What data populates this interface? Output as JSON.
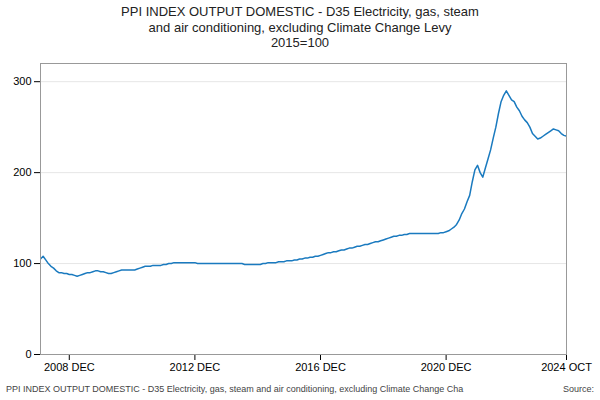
{
  "chart_data": {
    "type": "line",
    "title": "PPI INDEX OUTPUT DOMESTIC - D35 Electricity, gas, steam\nand air conditioning, excluding Climate Change Levy\n2015=100",
    "footer": "PPI INDEX OUTPUT DOMESTIC - D35 Electricity, gas, steam and air conditioning, excluding Climate Change Cha",
    "source": "Source:",
    "color": "#1a7abf",
    "grid": true,
    "ylim": [
      0,
      320
    ],
    "yticks": [
      0,
      100,
      200,
      300
    ],
    "categories": [
      null,
      null,
      null,
      null,
      null,
      null,
      null,
      null,
      null,
      null,
      null,
      "2008 DEC",
      null,
      null,
      null,
      null,
      null,
      null,
      null,
      null,
      null,
      null,
      null,
      null,
      null,
      null,
      null,
      null,
      null,
      null,
      null,
      null,
      null,
      null,
      null,
      null,
      null,
      null,
      null,
      null,
      null,
      null,
      null,
      null,
      null,
      null,
      null,
      null,
      null,
      null,
      null,
      null,
      null,
      null,
      null,
      null,
      null,
      null,
      null,
      "2012 DEC",
      null,
      null,
      null,
      null,
      null,
      null,
      null,
      null,
      null,
      null,
      null,
      null,
      null,
      null,
      null,
      null,
      null,
      null,
      null,
      null,
      null,
      null,
      null,
      null,
      null,
      null,
      null,
      null,
      null,
      null,
      null,
      null,
      null,
      null,
      null,
      null,
      null,
      null,
      null,
      null,
      null,
      null,
      null,
      null,
      null,
      null,
      null,
      "2016 DEC",
      null,
      null,
      null,
      null,
      null,
      null,
      null,
      null,
      null,
      null,
      null,
      null,
      null,
      null,
      null,
      null,
      null,
      null,
      null,
      null,
      null,
      null,
      null,
      null,
      null,
      null,
      null,
      null,
      null,
      null,
      null,
      null,
      null,
      null,
      null,
      null,
      null,
      null,
      null,
      null,
      null,
      null,
      null,
      null,
      null,
      null,
      null,
      "2020 DEC",
      null,
      null,
      null,
      null,
      null,
      null,
      null,
      null,
      null,
      null,
      null,
      null,
      null,
      null,
      null,
      null,
      null,
      null,
      null,
      null,
      null,
      null,
      null,
      null,
      null,
      null,
      null,
      null,
      null,
      null,
      null,
      null,
      null,
      null,
      null,
      null,
      null,
      null,
      null,
      null,
      null,
      null,
      null,
      null,
      null,
      "2024 OCT"
    ],
    "values": [
      105,
      108,
      104,
      100,
      97,
      95,
      92,
      90,
      90,
      89,
      89,
      88,
      88,
      87,
      86,
      87,
      88,
      89,
      90,
      90,
      91,
      92,
      92,
      91,
      91,
      90,
      89,
      89,
      90,
      91,
      92,
      93,
      93,
      93,
      93,
      93,
      93,
      94,
      95,
      96,
      97,
      97,
      97,
      98,
      98,
      98,
      98,
      99,
      99,
      100,
      100,
      101,
      101,
      101,
      101,
      101,
      101,
      101,
      101,
      101,
      100,
      100,
      100,
      100,
      100,
      100,
      100,
      100,
      100,
      100,
      100,
      100,
      100,
      100,
      100,
      100,
      100,
      100,
      99,
      99,
      99,
      99,
      99,
      99,
      99,
      100,
      100,
      101,
      101,
      101,
      101,
      102,
      102,
      102,
      103,
      103,
      103,
      104,
      104,
      105,
      105,
      106,
      106,
      107,
      107,
      108,
      108,
      109,
      110,
      111,
      112,
      112,
      113,
      113,
      114,
      115,
      115,
      116,
      117,
      117,
      118,
      119,
      119,
      120,
      121,
      121,
      122,
      123,
      124,
      124,
      125,
      126,
      127,
      128,
      129,
      130,
      130,
      131,
      131,
      132,
      132,
      133,
      133,
      133,
      133,
      133,
      133,
      133,
      133,
      133,
      133,
      133,
      133,
      134,
      134,
      135,
      136,
      138,
      140,
      143,
      148,
      155,
      160,
      168,
      175,
      190,
      203,
      208,
      200,
      195,
      205,
      215,
      225,
      238,
      250,
      265,
      278,
      285,
      290,
      285,
      280,
      278,
      272,
      268,
      262,
      258,
      255,
      250,
      243,
      240,
      237,
      238,
      240,
      242,
      244,
      246,
      248,
      247,
      246,
      243,
      241,
      240
    ]
  }
}
